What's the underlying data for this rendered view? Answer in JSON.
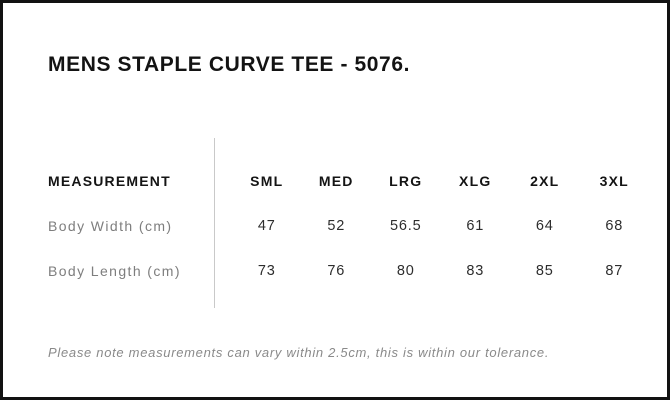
{
  "page": {
    "title": "MENS STAPLE CURVE TEE - 5076."
  },
  "size_chart": {
    "measurement_header": "MEASUREMENT",
    "sizes": [
      "SML",
      "MED",
      "LRG",
      "XLG",
      "2XL",
      "3XL"
    ],
    "rows": [
      {
        "label": "Body Width (cm)",
        "values": [
          "47",
          "52",
          "56.5",
          "61",
          "64",
          "68"
        ]
      },
      {
        "label": "Body Length (cm)",
        "values": [
          "73",
          "76",
          "80",
          "83",
          "85",
          "87"
        ]
      }
    ]
  },
  "note": "Please note measurements can vary within 2.5cm, this is within our tolerance.",
  "colors": {
    "background": "#ffffff",
    "border": "#121212",
    "title_text": "#131313",
    "header_text": "#141414",
    "row_label_text": "#7e7e7e",
    "value_text": "#2d2d2d",
    "note_text": "#8a8a8a",
    "divider": "#c9c9c9"
  }
}
